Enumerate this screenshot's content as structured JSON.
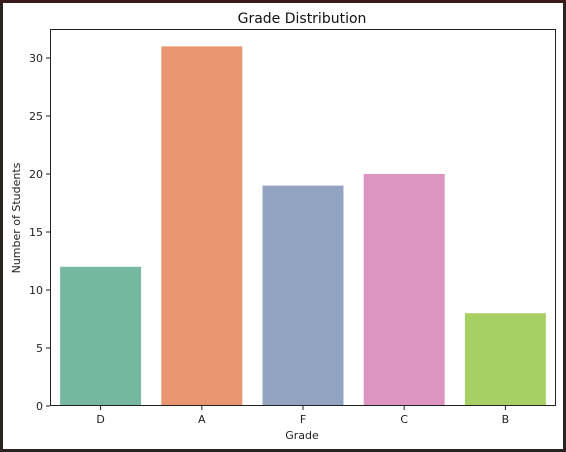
{
  "chart_data": {
    "type": "bar",
    "title": "Grade Distribution",
    "xlabel": "Grade",
    "ylabel": "Number of Students",
    "categories": [
      "D",
      "A",
      "F",
      "C",
      "B"
    ],
    "values": [
      12,
      31,
      19,
      20,
      8
    ],
    "colors": [
      "#76b7a0",
      "#e9956f",
      "#93a4c3",
      "#dc95c0",
      "#a6d063"
    ],
    "ylim": [
      0,
      32.5
    ],
    "yticks": [
      0,
      5,
      10,
      15,
      20,
      25,
      30
    ],
    "grid": false,
    "legend": "none"
  }
}
